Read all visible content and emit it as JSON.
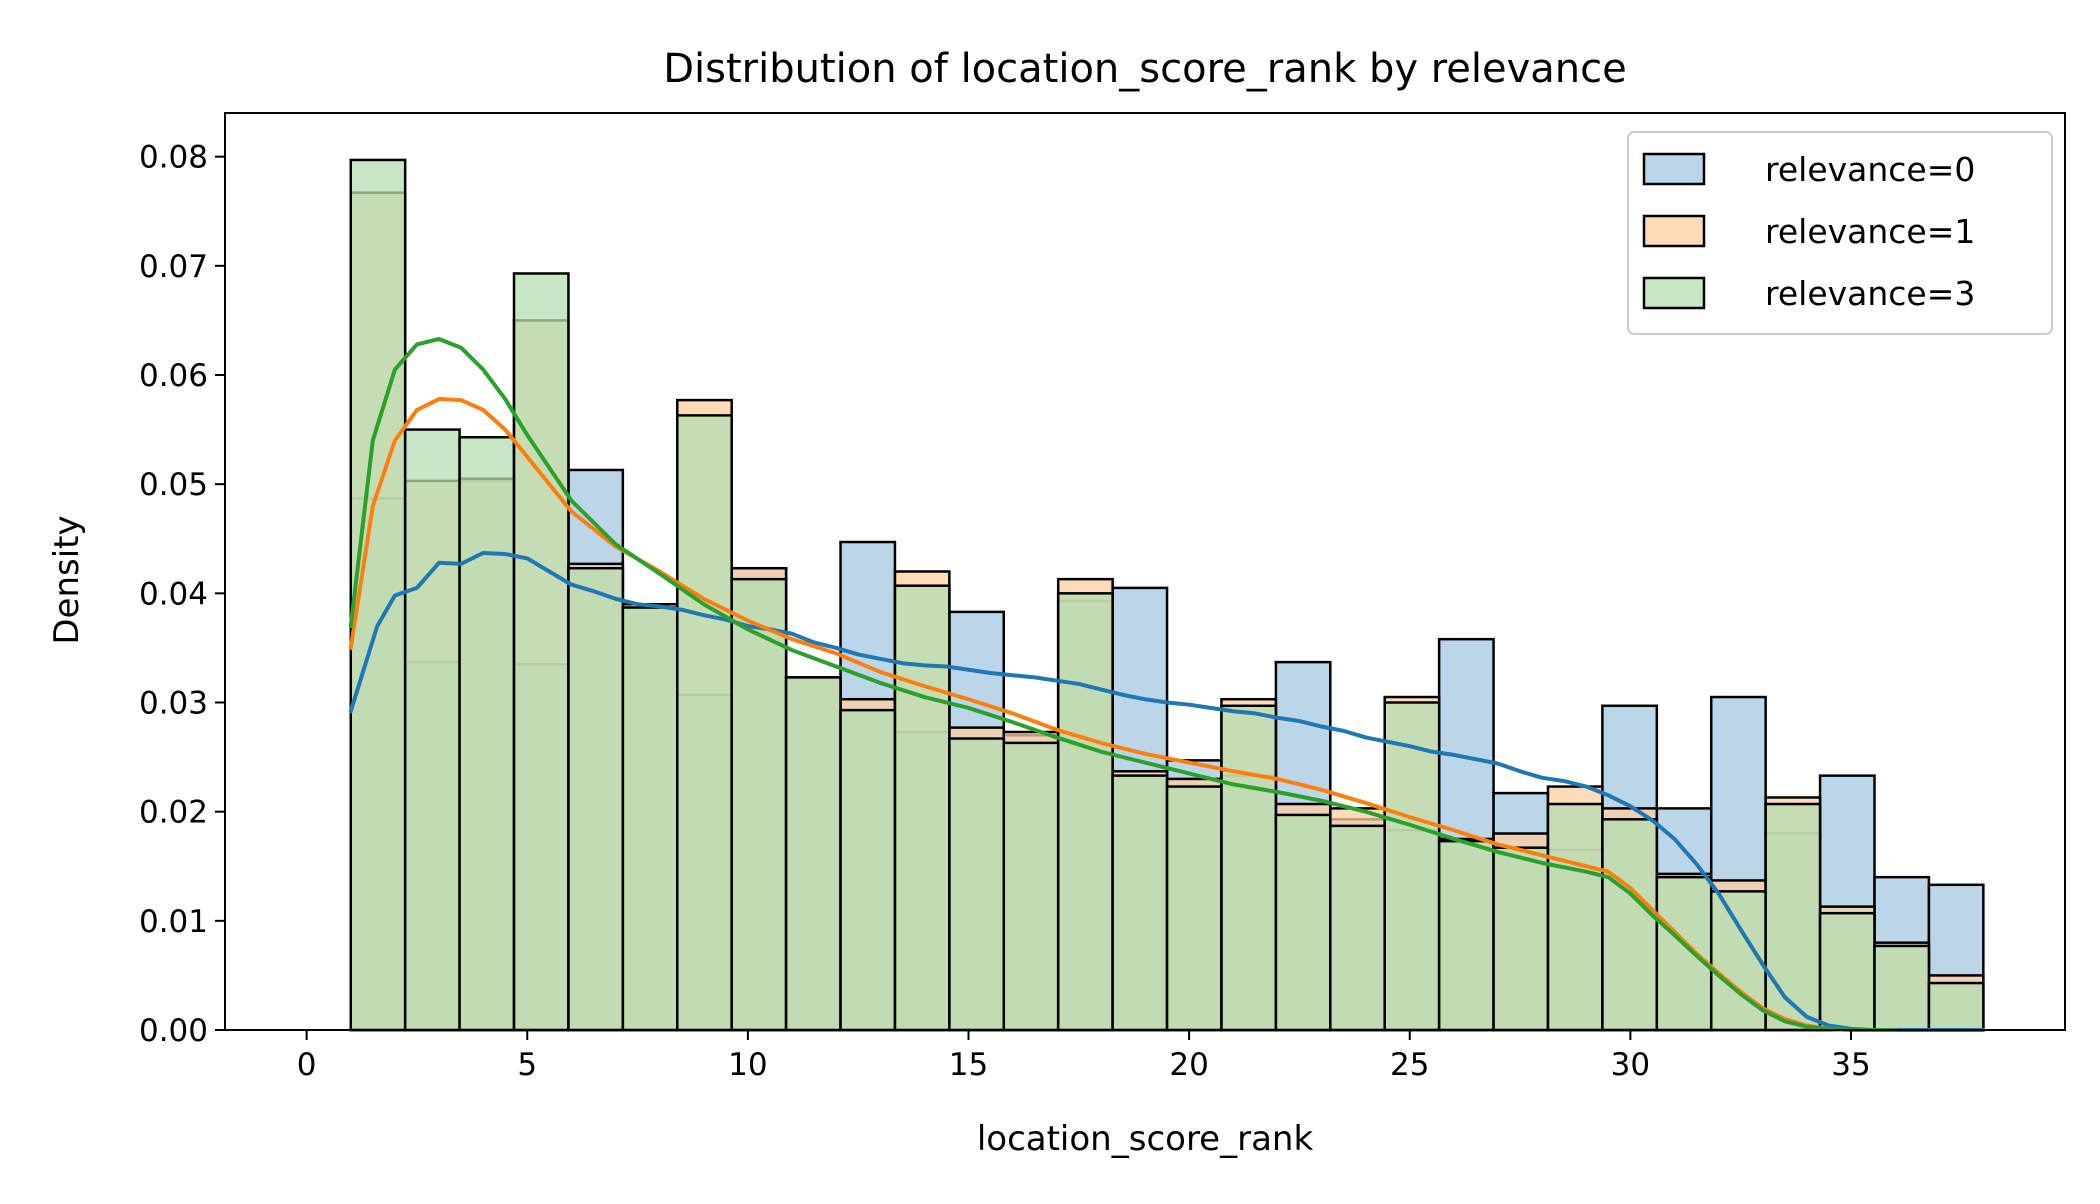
{
  "chart_data": {
    "type": "histogram",
    "title": "Distribution of location_score_rank by relevance",
    "xlabel": "location_score_rank",
    "ylabel": "Density",
    "xlim": [
      -1.85,
      39.85
    ],
    "ylim": [
      0,
      0.084
    ],
    "xticks": [
      0,
      5,
      10,
      15,
      20,
      25,
      30,
      35
    ],
    "xtick_labels": [
      "0",
      "5",
      "10",
      "15",
      "20",
      "25",
      "30",
      "35"
    ],
    "yticks": [
      0.0,
      0.01,
      0.02,
      0.03,
      0.04,
      0.05,
      0.06,
      0.07,
      0.08
    ],
    "ytick_labels": [
      "0.00",
      "0.01",
      "0.02",
      "0.03",
      "0.04",
      "0.05",
      "0.06",
      "0.07",
      "0.08"
    ],
    "grid": false,
    "legend_position": "top-right",
    "bins": {
      "start": 1,
      "width": 1.2333,
      "count": 30
    },
    "series": [
      {
        "name": "relevance=0",
        "color": "#1f77b4",
        "fill": "#a5c8e1",
        "densities": [
          0.0487,
          0.0337,
          0.0503,
          0.0335,
          0.0513,
          0.0387,
          0.0307,
          0.0423,
          0.0323,
          0.0447,
          0.0273,
          0.0383,
          0.027,
          0.0393,
          0.0405,
          0.0247,
          0.0233,
          0.0337,
          0.0193,
          0.0183,
          0.0358,
          0.0217,
          0.0165,
          0.0297,
          0.0203,
          0.0305,
          0.018,
          0.0233,
          0.014,
          0.0133
        ],
        "kde_x": [
          1.0,
          1.6,
          2.0,
          2.5,
          3.0,
          3.5,
          4.0,
          4.5,
          5.0,
          5.5,
          6.0,
          6.5,
          7.0,
          7.5,
          8.0,
          8.5,
          9.0,
          9.5,
          10.0,
          10.5,
          11.0,
          11.5,
          12.0,
          12.5,
          13.0,
          13.5,
          14.0,
          14.5,
          15.0,
          15.5,
          16.0,
          16.5,
          17.0,
          17.5,
          18.0,
          18.5,
          19.0,
          19.5,
          20.0,
          20.5,
          21.0,
          21.5,
          22.0,
          22.5,
          23.0,
          23.5,
          24.0,
          24.5,
          25.0,
          25.5,
          26.0,
          26.5,
          27.0,
          27.5,
          28.0,
          28.5,
          29.0,
          29.5,
          30.0,
          30.5,
          31.0,
          31.5,
          32.0,
          32.5,
          33.0,
          33.5,
          34.0,
          34.5,
          35.0,
          35.5,
          36.0,
          37.0,
          38.0
        ],
        "kde_y": [
          0.0292,
          0.037,
          0.0398,
          0.0405,
          0.0428,
          0.0427,
          0.0437,
          0.0436,
          0.0432,
          0.042,
          0.0408,
          0.0402,
          0.0395,
          0.039,
          0.0388,
          0.0385,
          0.038,
          0.0376,
          0.037,
          0.0367,
          0.0363,
          0.0355,
          0.035,
          0.0344,
          0.034,
          0.0336,
          0.0334,
          0.0333,
          0.033,
          0.0327,
          0.0325,
          0.0323,
          0.032,
          0.0317,
          0.0312,
          0.0307,
          0.0303,
          0.03,
          0.0298,
          0.0295,
          0.0292,
          0.029,
          0.0286,
          0.0283,
          0.0278,
          0.0274,
          0.0268,
          0.0264,
          0.026,
          0.0255,
          0.0252,
          0.0248,
          0.0244,
          0.0237,
          0.0231,
          0.0228,
          0.0223,
          0.0215,
          0.0205,
          0.0192,
          0.0175,
          0.0152,
          0.0125,
          0.0092,
          0.006,
          0.003,
          0.0012,
          0.0004,
          0.0001,
          0.0,
          0.0,
          0.0,
          0.0
        ]
      },
      {
        "name": "relevance=1",
        "color": "#ff7f0e",
        "fill": "#ffcf9f",
        "densities": [
          0.0767,
          0.0503,
          0.0505,
          0.065,
          0.0427,
          0.039,
          0.0577,
          0.0423,
          0.0323,
          0.0303,
          0.042,
          0.0277,
          0.0273,
          0.0413,
          0.0237,
          0.023,
          0.0303,
          0.0207,
          0.0203,
          0.0305,
          0.0175,
          0.018,
          0.0223,
          0.0203,
          0.0143,
          0.0137,
          0.0213,
          0.0113,
          0.008,
          0.005
        ],
        "kde_x": [
          1.0,
          1.5,
          2.0,
          2.5,
          3.0,
          3.5,
          4.0,
          4.5,
          5.0,
          6.0,
          7.0,
          8.0,
          9.0,
          10.0,
          11.0,
          12.0,
          13.0,
          14.0,
          15.0,
          16.0,
          17.0,
          18.0,
          19.0,
          20.0,
          21.0,
          22.0,
          23.0,
          24.0,
          25.0,
          26.0,
          27.0,
          28.0,
          29.0,
          29.5,
          30.0,
          30.5,
          31.0,
          31.5,
          32.0,
          32.5,
          33.0,
          33.5,
          34.0,
          34.5,
          35.0,
          36.0
        ],
        "kde_y": [
          0.035,
          0.048,
          0.054,
          0.0568,
          0.0578,
          0.0577,
          0.0568,
          0.055,
          0.0525,
          0.0475,
          0.0443,
          0.042,
          0.0395,
          0.0375,
          0.0358,
          0.0345,
          0.0328,
          0.0315,
          0.0303,
          0.029,
          0.0275,
          0.0263,
          0.0253,
          0.0245,
          0.0237,
          0.023,
          0.022,
          0.0208,
          0.0195,
          0.0183,
          0.017,
          0.016,
          0.015,
          0.0145,
          0.013,
          0.011,
          0.009,
          0.007,
          0.0052,
          0.0035,
          0.002,
          0.001,
          0.0004,
          0.0001,
          0.0,
          0.0
        ],
        "kde_end": 36.0
      },
      {
        "name": "relevance=3",
        "color": "#2ca02c",
        "fill": "#b3deb3",
        "densities": [
          0.0797,
          0.055,
          0.0543,
          0.0693,
          0.0423,
          0.0387,
          0.0563,
          0.0413,
          0.0323,
          0.0293,
          0.0407,
          0.0267,
          0.0263,
          0.04,
          0.0233,
          0.0223,
          0.0297,
          0.0197,
          0.0187,
          0.03,
          0.0173,
          0.0167,
          0.0207,
          0.0193,
          0.014,
          0.0127,
          0.0207,
          0.0107,
          0.0077,
          0.0043
        ],
        "kde_x": [
          1.0,
          1.5,
          2.0,
          2.5,
          3.0,
          3.5,
          4.0,
          4.5,
          5.0,
          6.0,
          7.0,
          8.0,
          9.0,
          10.0,
          11.0,
          12.0,
          13.0,
          14.0,
          15.0,
          16.0,
          17.0,
          18.0,
          19.0,
          20.0,
          21.0,
          22.0,
          23.0,
          24.0,
          25.0,
          26.0,
          27.0,
          28.0,
          29.0,
          29.5,
          30.0,
          30.5,
          31.0,
          31.5,
          32.0,
          32.5,
          33.0,
          33.5,
          34.0,
          34.5,
          35.0,
          36.0
        ],
        "kde_y": [
          0.037,
          0.054,
          0.0605,
          0.0628,
          0.0633,
          0.0625,
          0.0605,
          0.0578,
          0.0545,
          0.0485,
          0.0445,
          0.0418,
          0.039,
          0.0367,
          0.0348,
          0.0333,
          0.0318,
          0.0305,
          0.0295,
          0.0282,
          0.0268,
          0.0255,
          0.0245,
          0.0235,
          0.0225,
          0.0218,
          0.021,
          0.02,
          0.0188,
          0.0175,
          0.0163,
          0.0153,
          0.0145,
          0.014,
          0.0125,
          0.0105,
          0.0087,
          0.0068,
          0.005,
          0.0033,
          0.0018,
          0.0008,
          0.0003,
          0.0001,
          0.0,
          0.0
        ]
      }
    ]
  }
}
